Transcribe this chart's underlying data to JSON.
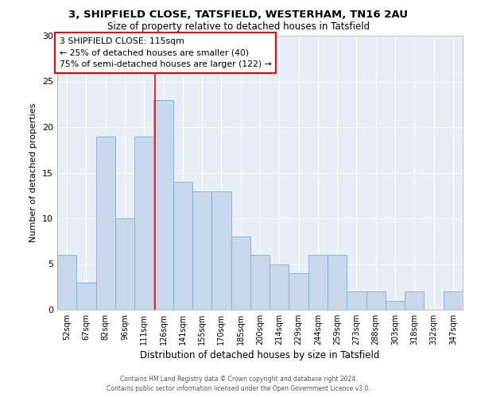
{
  "title1": "3, SHIPFIELD CLOSE, TATSFIELD, WESTERHAM, TN16 2AU",
  "title2": "Size of property relative to detached houses in Tatsfield",
  "xlabel": "Distribution of detached houses by size in Tatsfield",
  "ylabel": "Number of detached properties",
  "bar_labels": [
    "52sqm",
    "67sqm",
    "82sqm",
    "96sqm",
    "111sqm",
    "126sqm",
    "141sqm",
    "155sqm",
    "170sqm",
    "185sqm",
    "200sqm",
    "214sqm",
    "229sqm",
    "244sqm",
    "259sqm",
    "273sqm",
    "288sqm",
    "303sqm",
    "318sqm",
    "332sqm",
    "347sqm"
  ],
  "bar_values": [
    6,
    3,
    19,
    10,
    19,
    23,
    14,
    13,
    13,
    8,
    6,
    5,
    4,
    6,
    6,
    2,
    2,
    1,
    2,
    0,
    2
  ],
  "bar_color": "#c8d8ec",
  "bar_edge_color": "#7aaed6",
  "background_color": "#e8eef6",
  "ylim": [
    0,
    30
  ],
  "yticks": [
    0,
    5,
    10,
    15,
    20,
    25,
    30
  ],
  "grid_color": "#ffffff",
  "annotation_title": "3 SHIPFIELD CLOSE: 115sqm",
  "annotation_line1": "← 25% of detached houses are smaller (40)",
  "annotation_line2": "75% of semi-detached houses are larger (122) →",
  "red_line_x": 4.57,
  "footer1": "Contains HM Land Registry data © Crown copyright and database right 2024.",
  "footer2": "Contains public sector information licensed under the Open Government Licence v3.0."
}
